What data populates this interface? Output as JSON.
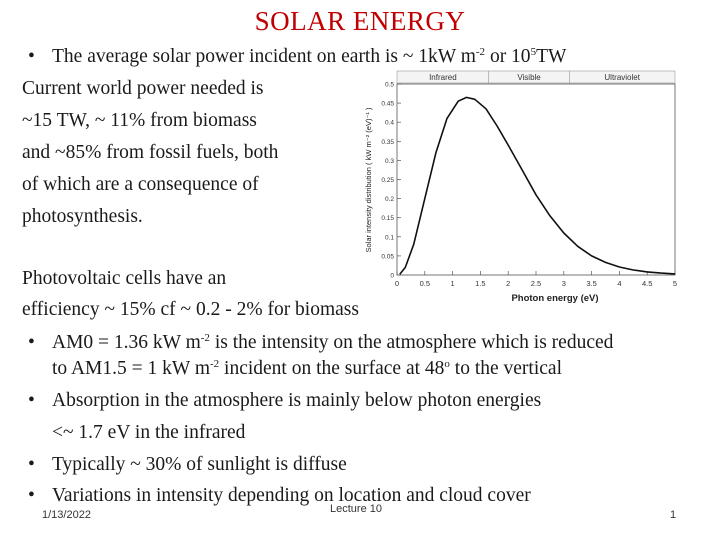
{
  "slide": {
    "title": "SOLAR ENERGY",
    "bullet1": {
      "pre": "The average solar power incident on earth is ~ 1kW m",
      "sup1": "-2",
      "mid": " or 10",
      "sup2": "5",
      "post": "TW"
    },
    "para1": [
      "Current world power needed is",
      "~15 TW, ~ 11% from biomass",
      "and ~85% from fossil fuels, both",
      "of which are a consequence of",
      "photosynthesis."
    ],
    "para2": [
      "Photovoltaic cells have an",
      "efficiency ~ 15%  cf  ~ 0.2 - 2% for biomass"
    ],
    "bullet2": {
      "line1_pre": "AM0 = 1.36 kW m",
      "line1_sup": "-2",
      "line1_post": " is the intensity on the atmosphere which is reduced",
      "line2_pre": "to AM1.5 = 1 kW m",
      "line2_sup": "-2",
      "line2_mid": " incident on the surface at 48",
      "line2_sup2": "o",
      "line2_post": " to the vertical"
    },
    "bullet3": {
      "line1": "Absorption in the atmosphere is mainly below photon energies",
      "line2": "<~ 1.7 eV in the infrared"
    },
    "bullet4": "Typically ~ 30% of sunlight is diffuse",
    "bullet5": "Variations in intensity depending on location and cloud cover",
    "footer": {
      "date": "1/13/2022",
      "center": "Lecture 10",
      "page": "1"
    }
  },
  "chart_data": {
    "type": "line",
    "regions": [
      "Infrared",
      "Visible",
      "Ultraviolet"
    ],
    "xlabel": "Photon energy (eV)",
    "ylabel": "Solar intensity distribution ( kW m⁻² (eV)⁻¹ )",
    "xlim": [
      0,
      5
    ],
    "ylim": [
      0,
      0.5
    ],
    "x_ticks": [
      "0",
      "0.5",
      "1",
      "1.5",
      "2",
      "2.5",
      "3",
      "3.5",
      "4",
      "4.5",
      "5"
    ],
    "y_ticks": [
      "0",
      "0.05",
      "0.1",
      "0.15",
      "0.2",
      "0.25",
      "0.3",
      "0.35",
      "0.4",
      "0.45",
      "0.5"
    ],
    "series": [
      {
        "x": [
          0.05,
          0.15,
          0.3,
          0.5,
          0.7,
          0.9,
          1.1,
          1.25,
          1.4,
          1.6,
          1.8,
          2.0,
          2.25,
          2.5,
          2.75,
          3.0,
          3.25,
          3.5,
          3.75,
          4.0,
          4.25,
          4.5,
          4.75,
          5.0
        ],
        "y": [
          0.002,
          0.02,
          0.08,
          0.2,
          0.32,
          0.41,
          0.455,
          0.465,
          0.46,
          0.435,
          0.39,
          0.34,
          0.275,
          0.21,
          0.155,
          0.11,
          0.075,
          0.05,
          0.033,
          0.021,
          0.013,
          0.008,
          0.005,
          0.003
        ]
      }
    ]
  }
}
